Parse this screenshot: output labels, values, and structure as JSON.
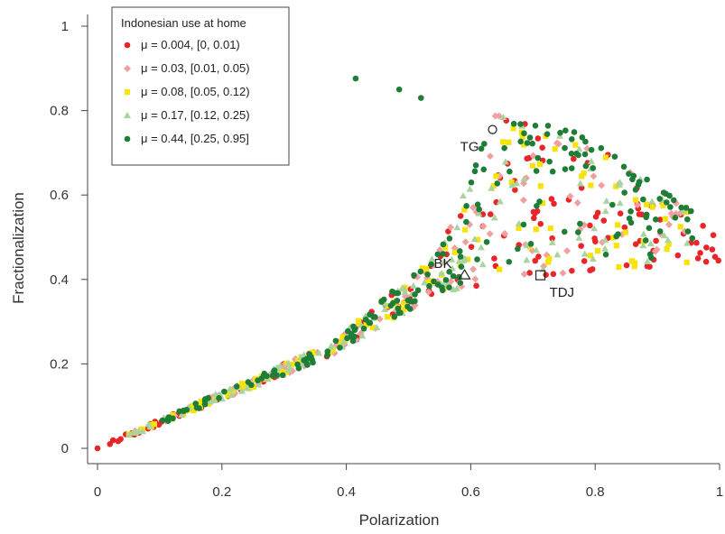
{
  "chart_data": {
    "type": "scatter",
    "title": "",
    "xlabel": "Polarization",
    "ylabel": "Fractionalization",
    "xlim": [
      0,
      1
    ],
    "ylim": [
      0,
      1
    ],
    "xticks": [
      "0",
      "0.2",
      "0.4",
      "0.6",
      "0.8",
      "1"
    ],
    "yticks": [
      "0",
      "0.2",
      "0.4",
      "0.6",
      "0.8",
      "1"
    ],
    "grid": false,
    "legend": {
      "title": "Indonesian use at home",
      "placement": "top-left"
    },
    "series": [
      {
        "name": "μ = 0.004, [0, 0.01)",
        "color": "#e8262a",
        "marker": "circle",
        "seed": 11
      },
      {
        "name": "μ = 0.03, [0.01, 0.05)",
        "color": "#f0a0a0",
        "marker": "diamond",
        "seed": 23
      },
      {
        "name": "μ = 0.08, [0.05, 0.12)",
        "color": "#f5e30a",
        "marker": "square",
        "seed": 37
      },
      {
        "name": "μ = 0.17, [0.12, 0.25)",
        "color": "#a9d4a0",
        "marker": "triangle",
        "seed": 41
      },
      {
        "name": "μ = 0.44, [0.25, 0.95]",
        "color": "#1e7d36",
        "marker": "circle",
        "seed": 53
      }
    ],
    "annotations": [
      {
        "text": "TG",
        "x": 0.635,
        "y": 0.755,
        "marker": "circle"
      },
      {
        "text": "BK",
        "x": 0.59,
        "y": 0.41,
        "marker": "triangle"
      },
      {
        "text": "TDJ",
        "x": 0.712,
        "y": 0.41,
        "marker": "square"
      }
    ]
  }
}
